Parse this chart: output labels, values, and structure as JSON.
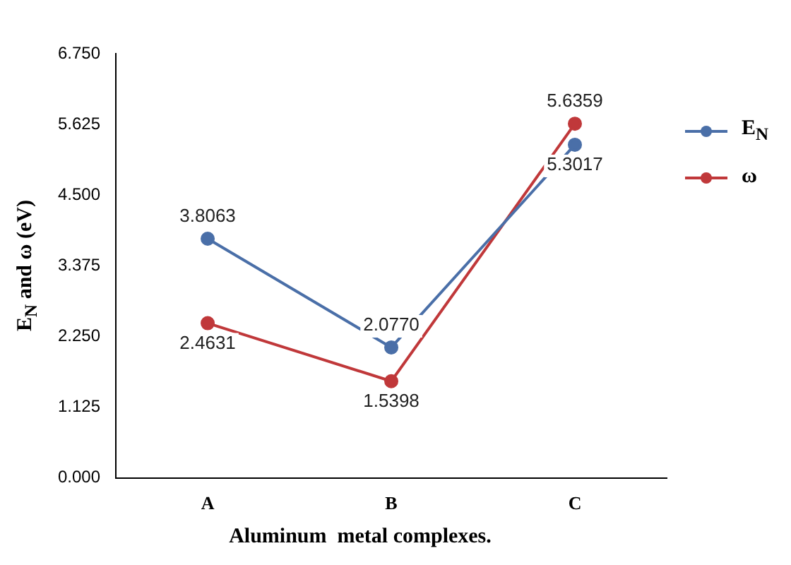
{
  "chart_data": {
    "type": "line",
    "xlabel": "Aluminum  metal complexes.",
    "ylabel": "E$_{N}$ and ω (eV)",
    "categories": [
      "A",
      "B",
      "C"
    ],
    "series": [
      {
        "name": "E$_{N}$",
        "color": "#4a6fa8",
        "values": [
          3.8063,
          2.077,
          5.3017
        ],
        "value_labels": [
          "3.8063",
          "2.0770",
          "5.3017"
        ]
      },
      {
        "name": "ω",
        "color": "#c0383a",
        "values": [
          2.4631,
          1.5398,
          5.6359
        ],
        "value_labels": [
          "2.4631",
          "1.5398",
          "5.6359"
        ]
      }
    ],
    "ylim": [
      0,
      6.75
    ],
    "yticks": [
      {
        "value": 0,
        "label": "0.000"
      },
      {
        "value": 1.125,
        "label": "1.125"
      },
      {
        "value": 2.25,
        "label": "2.250"
      },
      {
        "value": 3.375,
        "label": "3.375"
      },
      {
        "value": 4.5,
        "label": "4.500"
      },
      {
        "value": 5.625,
        "label": "5.625"
      },
      {
        "value": 6.75,
        "label": "6.750"
      }
    ],
    "grid": false,
    "legend": "top right",
    "marker": "circle",
    "line_style": "solid"
  }
}
